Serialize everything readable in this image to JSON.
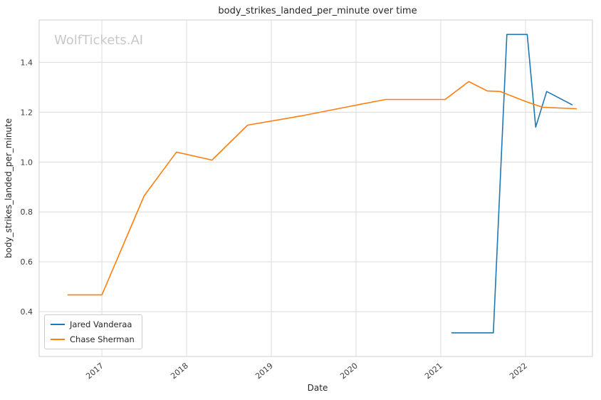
{
  "chart": {
    "title": "body_strikes_landed_per_minute over time",
    "xlabel": "Date",
    "ylabel": "body_strikes_landed_per_minute"
  },
  "watermark": {
    "text": "WolfTickets.AI"
  },
  "chart_data": {
    "type": "line",
    "title": "body_strikes_landed_per_minute over time",
    "xlabel": "Date",
    "ylabel": "body_strikes_landed_per_minute",
    "xlim": [
      2016.26,
      2022.79
    ],
    "ylim": [
      0.22,
      1.57
    ],
    "grid": true,
    "legend_position": "lower left",
    "xticks": [
      {
        "value": 2017,
        "label": "2017"
      },
      {
        "value": 2018,
        "label": "2018"
      },
      {
        "value": 2019,
        "label": "2019"
      },
      {
        "value": 2020,
        "label": "2020"
      },
      {
        "value": 2021,
        "label": "2021"
      },
      {
        "value": 2022,
        "label": "2022"
      }
    ],
    "yticks": [
      {
        "value": 0.4,
        "label": "0.4"
      },
      {
        "value": 0.6,
        "label": "0.6"
      },
      {
        "value": 0.8,
        "label": "0.8"
      },
      {
        "value": 1.0,
        "label": "1.0"
      },
      {
        "value": 1.2,
        "label": "1.2"
      },
      {
        "value": 1.4,
        "label": "1.4"
      }
    ],
    "series": [
      {
        "name": "Jared Vanderaa",
        "color": "#1f77b4",
        "points": [
          [
            2021.13,
            0.315
          ],
          [
            2021.62,
            0.315
          ],
          [
            2021.78,
            1.512
          ],
          [
            2022.02,
            1.512
          ],
          [
            2022.12,
            1.14
          ],
          [
            2022.25,
            1.283
          ],
          [
            2022.55,
            1.23
          ]
        ]
      },
      {
        "name": "Chase Sherman",
        "color": "#ff7f0e",
        "points": [
          [
            2016.6,
            0.467
          ],
          [
            2017.0,
            0.467
          ],
          [
            2017.5,
            0.865
          ],
          [
            2017.88,
            1.04
          ],
          [
            2018.3,
            1.008
          ],
          [
            2018.72,
            1.148
          ],
          [
            2019.35,
            1.185
          ],
          [
            2019.95,
            1.225
          ],
          [
            2020.35,
            1.251
          ],
          [
            2021.05,
            1.251
          ],
          [
            2021.33,
            1.323
          ],
          [
            2021.55,
            1.285
          ],
          [
            2021.7,
            1.283
          ],
          [
            2022.0,
            1.243
          ],
          [
            2022.2,
            1.22
          ],
          [
            2022.6,
            1.214
          ]
        ]
      }
    ]
  }
}
